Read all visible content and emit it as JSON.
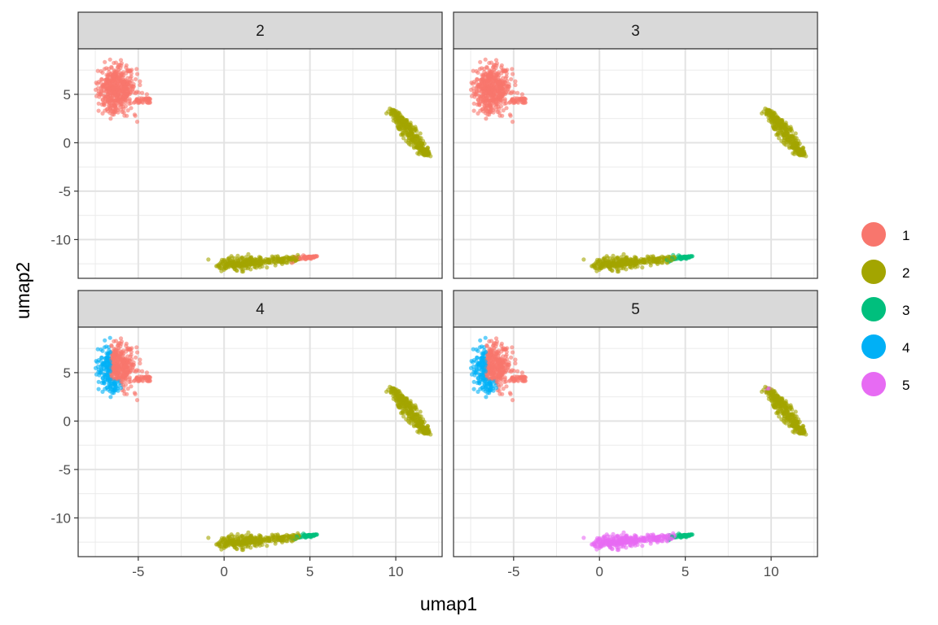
{
  "chart_data": {
    "type": "scatter",
    "facet_by": "k",
    "facets": [
      "2",
      "3",
      "4",
      "5"
    ],
    "xlabel": "umap1",
    "ylabel": "umap2",
    "xlim": [
      -8.5,
      12.7
    ],
    "ylim": [
      -14.0,
      9.7
    ],
    "x_ticks": [
      -5,
      0,
      5,
      10
    ],
    "y_ticks": [
      5,
      0,
      -5,
      -10
    ],
    "grid": true,
    "legend": {
      "placement": "right",
      "entries": [
        {
          "label": "1",
          "color": "#F8766D"
        },
        {
          "label": "2",
          "color": "#A3A500"
        },
        {
          "label": "3",
          "color": "#00BF7D"
        },
        {
          "label": "4",
          "color": "#00B0F6"
        },
        {
          "label": "5",
          "color": "#E76BF3"
        }
      ]
    },
    "clusters": [
      {
        "name": "upper-left blob",
        "x": [
          -7.4,
          -4.3
        ],
        "y": [
          2.2,
          8.6
        ]
      },
      {
        "name": "right elongated cluster",
        "x": [
          9.6,
          11.9
        ],
        "y": [
          -1.4,
          3.5
        ]
      },
      {
        "name": "bottom elongated cluster",
        "x": [
          0.2,
          5.4
        ],
        "y": [
          -13.1,
          -11.8
        ]
      }
    ],
    "panels": [
      {
        "facet": "2",
        "assignment": {
          "upper-left": "1",
          "right": "2",
          "bottom": "2",
          "bottom_tip": "1"
        }
      },
      {
        "facet": "3",
        "assignment": {
          "upper-left": "1",
          "right": "2",
          "bottom": "2",
          "bottom_tip": "3"
        }
      },
      {
        "facet": "4",
        "assignment": {
          "upper-left": "1",
          "upper-left_left_edge": "4",
          "right": "2",
          "bottom": "2",
          "bottom_tip": "3"
        }
      },
      {
        "facet": "5",
        "assignment": {
          "upper-left": "1",
          "upper-left_left_edge": "4",
          "right": "2",
          "right_tip": "5",
          "bottom": "5",
          "bottom_tip": "3"
        }
      }
    ]
  }
}
